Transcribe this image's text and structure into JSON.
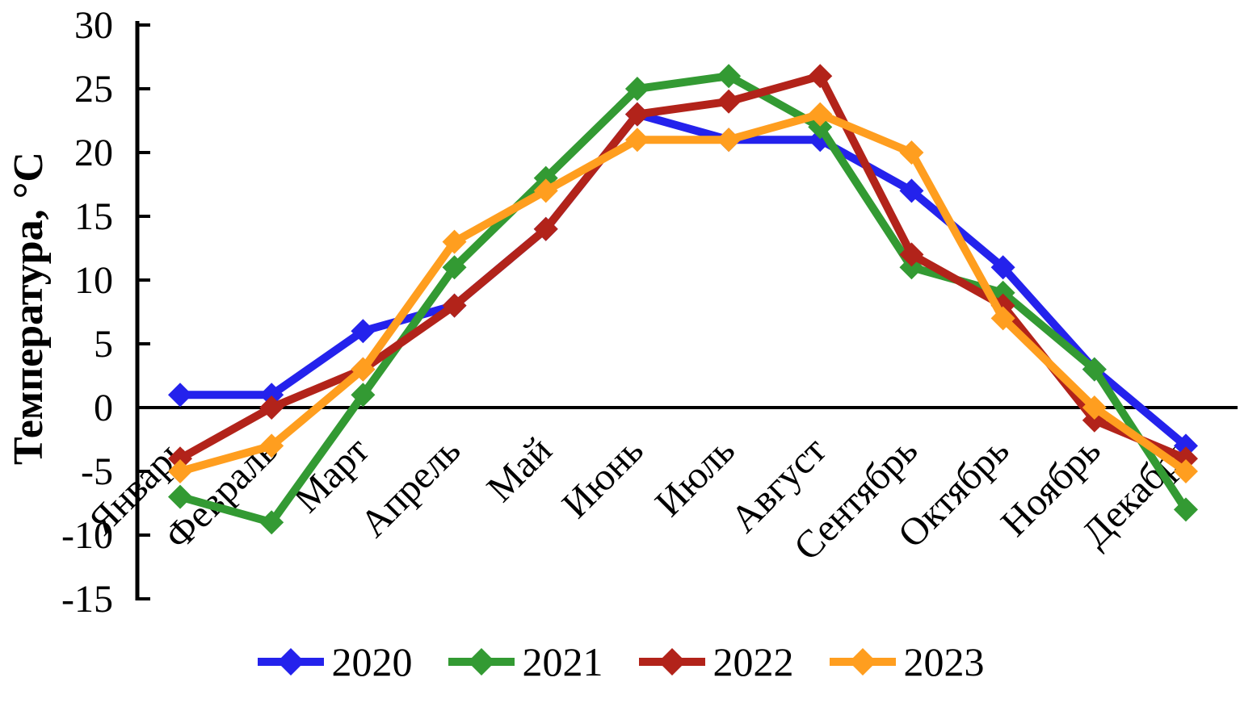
{
  "chart_data": {
    "type": "line",
    "title": "",
    "ylabel": "Температура, °C",
    "xlabel": "",
    "ylim": [
      -15,
      30
    ],
    "yticks": [
      30,
      25,
      20,
      15,
      10,
      5,
      0,
      -5,
      -10,
      -15
    ],
    "grid": false,
    "zero_line": true,
    "legend_position": "bottom",
    "categories": [
      "Январь",
      "Февраль",
      "Март",
      "Апрель",
      "Май",
      "Июнь",
      "Июль",
      "Август",
      "Сентябрь",
      "Октябрь",
      "Ноябрь",
      "Декабрь"
    ],
    "series": [
      {
        "name": "2020",
        "color": "#2422ec",
        "values": [
          1,
          1,
          6,
          8,
          14,
          23,
          21,
          21,
          17,
          11,
          3,
          -3
        ]
      },
      {
        "name": "2021",
        "color": "#339a33",
        "values": [
          -7,
          -9,
          1,
          11,
          18,
          25,
          26,
          22,
          11,
          9,
          3,
          -8
        ]
      },
      {
        "name": "2022",
        "color": "#b2231a",
        "values": [
          -4,
          0,
          3,
          8,
          14,
          23,
          24,
          26,
          12,
          8,
          -1,
          -4
        ]
      },
      {
        "name": "2023",
        "color": "#ff9e1f",
        "values": [
          -5,
          -3,
          3,
          13,
          17,
          21,
          21,
          23,
          20,
          7,
          0,
          -5
        ]
      }
    ]
  }
}
